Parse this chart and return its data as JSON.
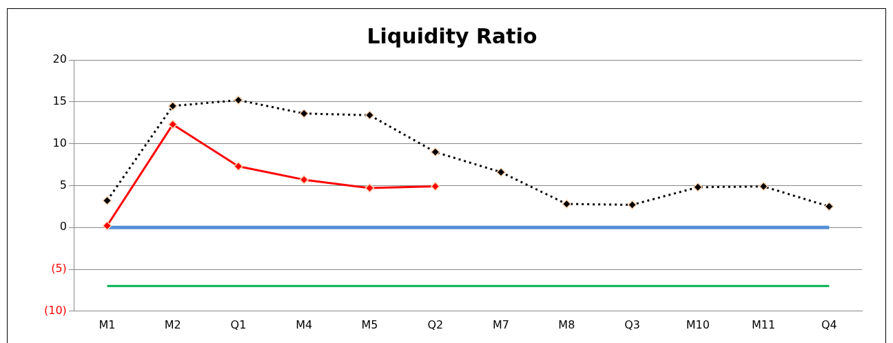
{
  "chart_data": {
    "type": "line",
    "title": "Liquidity Ratio",
    "categories": [
      "M1",
      "M2",
      "Q1",
      "M4",
      "M5",
      "Q2",
      "M7",
      "M8",
      "Q3",
      "M10",
      "M11",
      "Q4"
    ],
    "series": [
      {
        "color": "#000000",
        "marker": "diamond",
        "line_style": "dotted",
        "values": [
          3.2,
          14.5,
          15.2,
          13.6,
          13.4,
          9.0,
          6.6,
          2.8,
          2.7,
          4.8,
          4.9,
          2.5
        ]
      },
      {
        "color": "#ff0000",
        "marker": "diamond",
        "line_style": "solid",
        "values": [
          0.2,
          12.3,
          7.3,
          5.7,
          4.7,
          4.9,
          null,
          null,
          null,
          null,
          null,
          null
        ]
      },
      {
        "color": "#558ed5",
        "marker": "none",
        "line_style": "solid",
        "values": [
          0,
          0,
          0,
          0,
          0,
          0,
          0,
          0,
          0,
          0,
          0,
          0
        ]
      },
      {
        "color": "#00b050",
        "marker": "none",
        "line_style": "solid",
        "values": [
          -7,
          -7,
          -7,
          -7,
          -7,
          -7,
          -7,
          -7,
          -7,
          -7,
          -7,
          -7
        ]
      }
    ],
    "ylim": [
      -10,
      20
    ],
    "yticks": [
      {
        "value": -10,
        "label": "(10)"
      },
      {
        "value": -5,
        "label": "(5)"
      },
      0,
      5,
      10,
      15,
      20
    ],
    "grid": "y",
    "legend": false
  }
}
